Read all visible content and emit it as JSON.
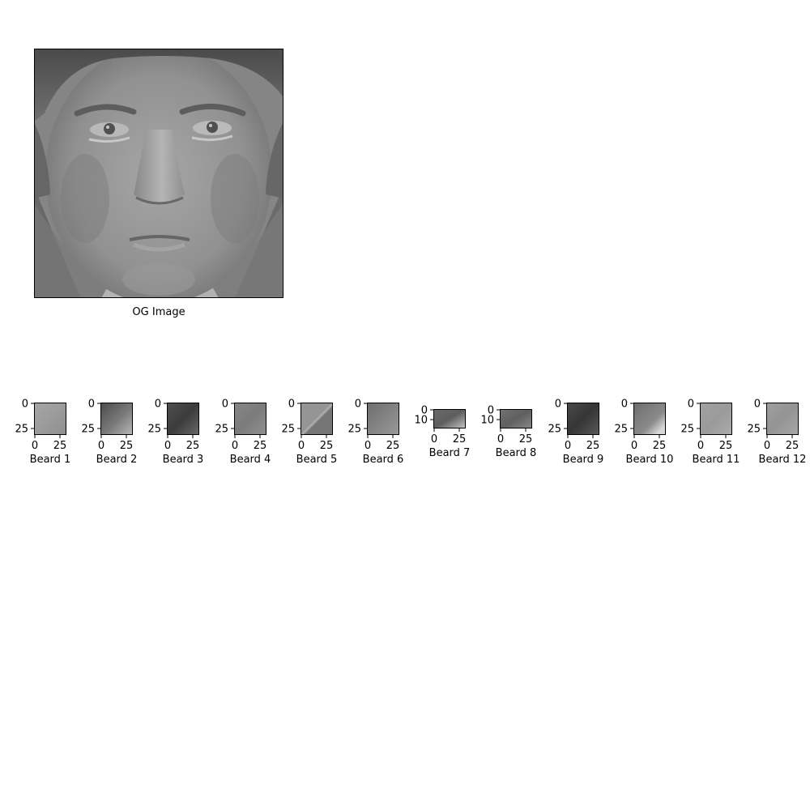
{
  "main_image": {
    "label": "OG Image"
  },
  "crops": [
    {
      "label": "Beard 1",
      "yticks": [
        "0",
        "25"
      ],
      "xticks": [
        "0",
        "25"
      ],
      "tone": "light",
      "colors": [
        "#a6a6a6",
        "#9b9b9b",
        "#8f8f8f"
      ]
    },
    {
      "label": "Beard 2",
      "yticks": [
        "0",
        "25"
      ],
      "xticks": [
        "0",
        "25"
      ],
      "tone": "shadow",
      "colors": [
        "#4b4b4b",
        "#7a7a7a",
        "#bcbcbc"
      ]
    },
    {
      "label": "Beard 3",
      "yticks": [
        "0",
        "25"
      ],
      "xticks": [
        "0",
        "25"
      ],
      "tone": "dark",
      "colors": [
        "#505050",
        "#3c3c3c",
        "#696969"
      ]
    },
    {
      "label": "Beard 4",
      "yticks": [
        "0",
        "25"
      ],
      "xticks": [
        "0",
        "25"
      ],
      "tone": "mid",
      "colors": [
        "#878787",
        "#7b7b7b",
        "#909090"
      ]
    },
    {
      "label": "Beard 5",
      "yticks": [
        "0",
        "25"
      ],
      "xticks": [
        "0",
        "25"
      ],
      "tone": "diagonal",
      "colors": [
        "#959595",
        "#767676",
        "#b2b2b2"
      ]
    },
    {
      "label": "Beard 6",
      "yticks": [
        "0",
        "25"
      ],
      "xticks": [
        "0",
        "25"
      ],
      "tone": "mid-dark",
      "colors": [
        "#6e6e6e",
        "#838383",
        "#9a9a9a"
      ]
    },
    {
      "label": "Beard 7",
      "yticks": [
        "0",
        "10"
      ],
      "xticks": [
        "0",
        "25"
      ],
      "tone": "wide",
      "colors": [
        "#6a6a6a",
        "#5e5e5e",
        "#c8c8c8"
      ]
    },
    {
      "label": "Beard 8",
      "yticks": [
        "0",
        "10"
      ],
      "xticks": [
        "0",
        "25"
      ],
      "tone": "wide",
      "colors": [
        "#737373",
        "#5f5f5f",
        "#8a8a8a"
      ]
    },
    {
      "label": "Beard 9",
      "yticks": [
        "0",
        "25"
      ],
      "xticks": [
        "0",
        "25"
      ],
      "tone": "dark",
      "colors": [
        "#4a4a4a",
        "#363636",
        "#5a5a5a"
      ]
    },
    {
      "label": "Beard 10",
      "yticks": [
        "0",
        "25"
      ],
      "xticks": [
        "0",
        "25"
      ],
      "tone": "corner",
      "colors": [
        "#8b8b8b",
        "#6c6c6c",
        "#d8d8d8"
      ]
    },
    {
      "label": "Beard 11",
      "yticks": [
        "0",
        "25"
      ],
      "xticks": [
        "0",
        "25"
      ],
      "tone": "light",
      "colors": [
        "#a2a2a2",
        "#9a9a9a",
        "#acacac"
      ]
    },
    {
      "label": "Beard 12",
      "yticks": [
        "0",
        "25"
      ],
      "xticks": [
        "0",
        "25"
      ],
      "tone": "light",
      "colors": [
        "#9f9f9f",
        "#949494",
        "#a8a8a8"
      ]
    }
  ]
}
